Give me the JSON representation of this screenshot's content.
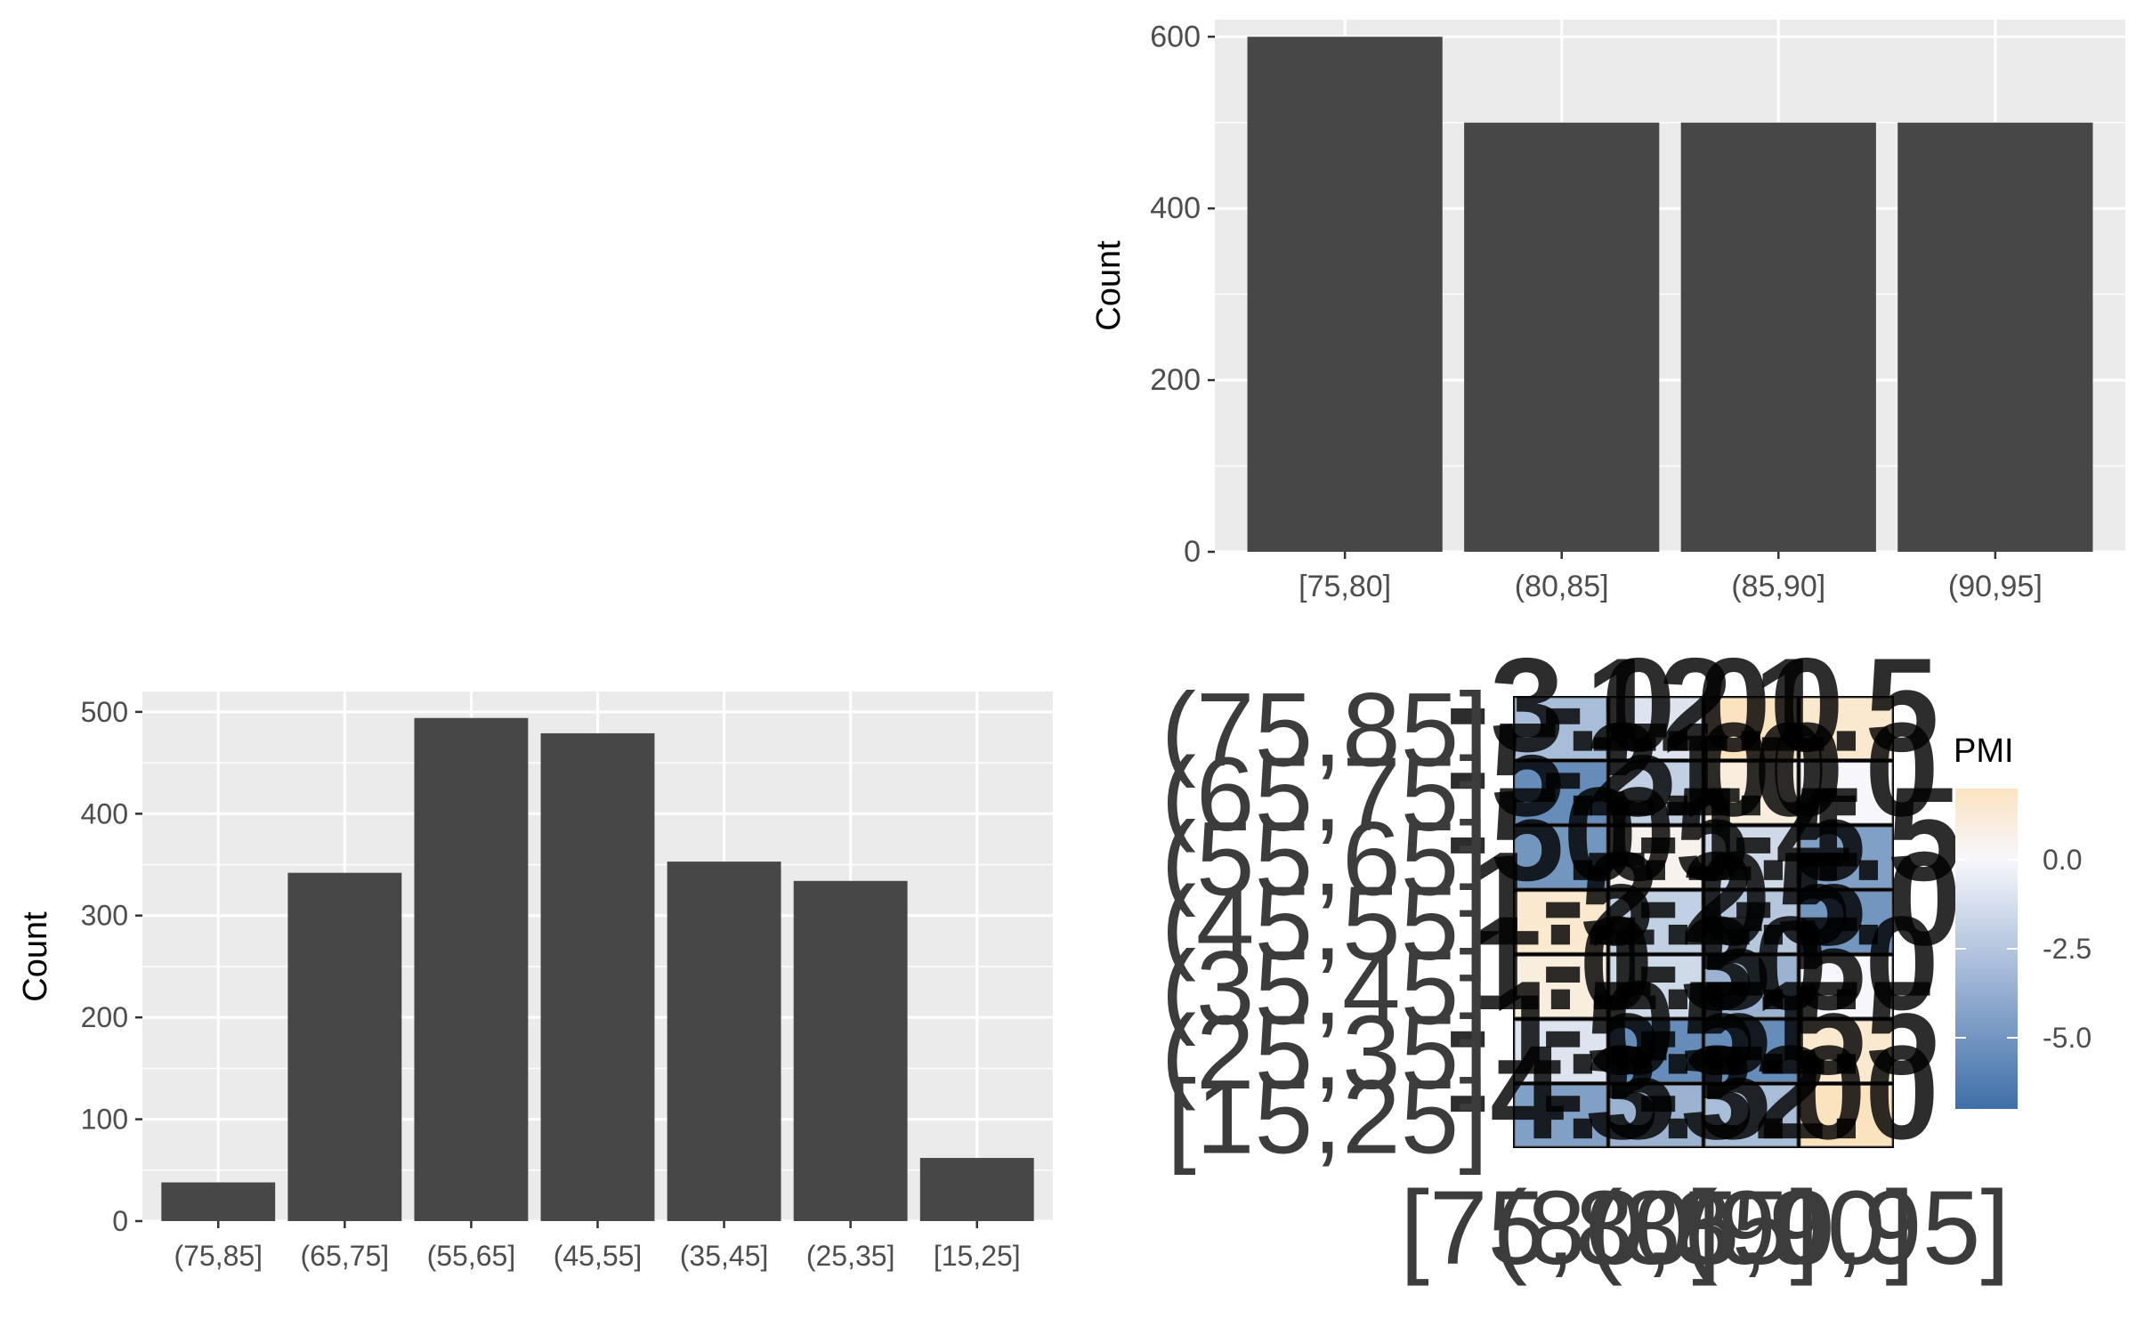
{
  "chart_data": [
    {
      "type": "bar",
      "categories": [
        "[75,80]",
        "(80,85]",
        "(85,90]",
        "(90,95]"
      ],
      "values": [
        600,
        500,
        500,
        500
      ],
      "ylabel": "Count",
      "xlabel": "",
      "ylim": [
        0,
        620
      ],
      "yticks": [
        0,
        200,
        400,
        600
      ],
      "grid": true
    },
    {
      "type": "bar",
      "categories": [
        "(75,85]",
        "(65,75]",
        "(55,65]",
        "(45,55]",
        "(35,45]",
        "(25,35]",
        "[15,25]"
      ],
      "values": [
        38,
        342,
        494,
        479,
        353,
        334,
        62
      ],
      "ylabel": "Count",
      "xlabel": "",
      "ylim": [
        0,
        520
      ],
      "yticks": [
        0,
        100,
        200,
        300,
        400,
        500
      ],
      "grid": true
    },
    {
      "type": "heatmap",
      "row_labels": [
        "(75,85]",
        "(65,75]",
        "(55,65]",
        "(45,55]",
        "(35,45]",
        "(25,35]",
        "[15,25]"
      ],
      "col_labels": [
        "[75,80]",
        "(80,85]",
        "(85,90]",
        "(90,95]"
      ],
      "values": [
        [
          -3.0,
          -1.0,
          2.0,
          1.5
        ],
        [
          -5.5,
          -2.0,
          1.0,
          0.0
        ],
        [
          -5.0,
          0.5,
          -1.5,
          -4.5
        ],
        [
          1.5,
          -2.0,
          -2.5,
          -5.0
        ],
        [
          1.0,
          -1.5,
          -3.5,
          0.0
        ],
        [
          -1.0,
          -5.5,
          -5.5,
          1.5
        ],
        [
          -4.5,
          -3.5,
          -3.0,
          2.0
        ]
      ],
      "legend": {
        "title": "PMI",
        "ticks": [
          0.0,
          -2.5,
          -5.0
        ],
        "tick_labels": [
          "0.0",
          "-2.5",
          "-5.0"
        ],
        "range": [
          -7.0,
          2.0
        ],
        "colors": {
          "low": "#3e6fa7",
          "mid": "#f7f7fb",
          "high": "#fbe3c0"
        }
      }
    }
  ]
}
